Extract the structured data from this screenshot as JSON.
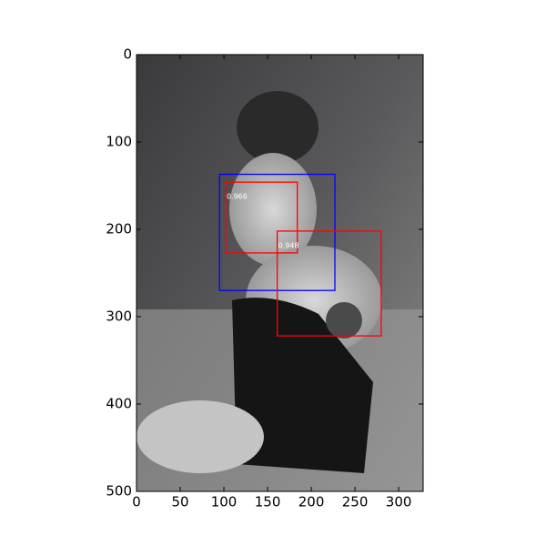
{
  "chart_data": {
    "type": "image-detections",
    "xlim": [
      0,
      328
    ],
    "ylim": [
      500,
      0
    ],
    "xticks": [
      0,
      50,
      100,
      150,
      200,
      250,
      300
    ],
    "yticks": [
      0,
      100,
      200,
      300,
      400,
      500
    ],
    "boxes": [
      {
        "x0": 95,
        "y0": 137,
        "x1": 227,
        "y1": 270,
        "color": "#0000ff"
      },
      {
        "x0": 102,
        "y0": 146,
        "x1": 184,
        "y1": 227,
        "color": "#ff0000",
        "score": 0.966
      },
      {
        "x0": 161,
        "y0": 202,
        "x1": 280,
        "y1": 322,
        "color": "#ff0000",
        "score": 0.948
      }
    ]
  }
}
